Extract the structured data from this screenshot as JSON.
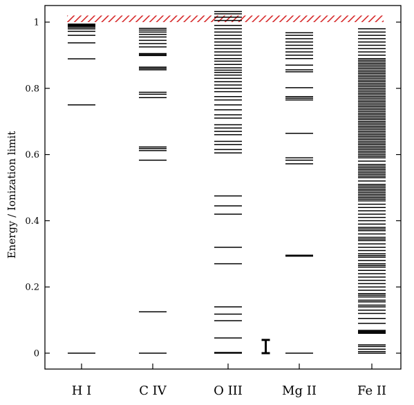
{
  "chart_data": {
    "type": "level-diagram",
    "ylabel": "Energy / Ionization limit",
    "ylim": [
      -0.04,
      1.035
    ],
    "yticks": [
      0,
      0.2,
      0.4,
      0.6,
      0.8,
      1
    ],
    "ytick_labels": [
      "0",
      "0.2",
      "0.4",
      "0.6",
      "0.8",
      "1"
    ],
    "ionization_band": {
      "from": 1.0,
      "to": 1.02,
      "color": "#d62728",
      "pattern": "hatched"
    },
    "error_bar": {
      "category_position": 3.5,
      "low": 0.0,
      "high": 0.04,
      "note": "uncertainty scale"
    },
    "categories": [
      "H I",
      "C IV",
      "O III",
      "Mg II",
      "Fe II"
    ],
    "series": [
      {
        "name": "H I",
        "levels": [
          0,
          0.75,
          0.889,
          0.9375,
          0.96,
          0.972,
          0.9796,
          0.9844,
          0.9877,
          0.99,
          0.9917,
          0.993,
          0.994
        ]
      },
      {
        "name": "C IV",
        "levels": [
          0,
          0.125,
          0.583,
          0.612,
          0.618,
          0.623,
          0.772,
          0.782,
          0.788,
          0.856,
          0.86,
          0.864,
          0.899,
          0.902,
          0.905,
          0.925,
          0.935,
          0.945,
          0.955,
          0.963,
          0.97,
          0.976,
          0.981
        ]
      },
      {
        "name": "O III",
        "levels": [
          0,
          0.002,
          0.046,
          0.098,
          0.118,
          0.14,
          0.27,
          0.32,
          0.42,
          0.445,
          0.475,
          0.605,
          0.615,
          0.63,
          0.64,
          0.66,
          0.67,
          0.68,
          0.69,
          0.71,
          0.72,
          0.735,
          0.75,
          0.765,
          0.775,
          0.79,
          0.8,
          0.81,
          0.82,
          0.83,
          0.84,
          0.848,
          0.855,
          0.862,
          0.872,
          0.882,
          0.89,
          0.9,
          0.91,
          0.92,
          0.93,
          0.94,
          0.95,
          0.96,
          0.97,
          0.98,
          0.99,
          1.005,
          1.015,
          1.025,
          1.032
        ]
      },
      {
        "name": "Mg II",
        "levels": [
          0,
          0.293,
          0.296,
          0.572,
          0.583,
          0.59,
          0.664,
          0.765,
          0.77,
          0.775,
          0.802,
          0.85,
          0.856,
          0.87,
          0.89,
          0.9,
          0.91,
          0.92,
          0.93,
          0.94,
          0.95,
          0.96,
          0.968
        ]
      },
      {
        "name": "Fe II",
        "levels": [
          0,
          0.005,
          0.012,
          0.02,
          0.025,
          0.06,
          0.063,
          0.066,
          0.069,
          0.09,
          0.105,
          0.12,
          0.13,
          0.14,
          0.145,
          0.155,
          0.16,
          0.17,
          0.175,
          0.18,
          0.19,
          0.2,
          0.21,
          0.22,
          0.23,
          0.24,
          0.25,
          0.26,
          0.265,
          0.27,
          0.28,
          0.29,
          0.295,
          0.3,
          0.31,
          0.32,
          0.33,
          0.34,
          0.345,
          0.35,
          0.36,
          0.37,
          0.375,
          0.38,
          0.39,
          0.4,
          0.41,
          0.42,
          0.43,
          0.44,
          0.45,
          0.46,
          0.465,
          0.47,
          0.475,
          0.48,
          0.485,
          0.49,
          0.495,
          0.5,
          0.505,
          0.51,
          0.52,
          0.53,
          0.535,
          0.54,
          0.545,
          0.55,
          0.555,
          0.56,
          0.565,
          0.57,
          0.58,
          0.59,
          0.595,
          0.6,
          0.605,
          0.61,
          0.615,
          0.62,
          0.625,
          0.63,
          0.635,
          0.64,
          0.645,
          0.65,
          0.655,
          0.66,
          0.665,
          0.67,
          0.675,
          0.68,
          0.685,
          0.69,
          0.695,
          0.7,
          0.705,
          0.71,
          0.715,
          0.72,
          0.725,
          0.73,
          0.735,
          0.74,
          0.745,
          0.75,
          0.755,
          0.76,
          0.765,
          0.77,
          0.775,
          0.78,
          0.785,
          0.79,
          0.795,
          0.8,
          0.805,
          0.81,
          0.815,
          0.82,
          0.825,
          0.83,
          0.835,
          0.84,
          0.845,
          0.85,
          0.855,
          0.86,
          0.865,
          0.87,
          0.875,
          0.88,
          0.885,
          0.89,
          0.9,
          0.91,
          0.92,
          0.93,
          0.94,
          0.95,
          0.96,
          0.97,
          0.98
        ]
      }
    ]
  }
}
